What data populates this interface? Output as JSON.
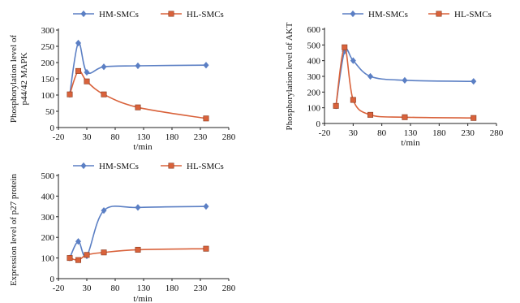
{
  "chart_data": [
    {
      "type": "line",
      "xlabel": "t/min",
      "ylabel": "Phosphorylation level of p44/42 MAPK",
      "ylabel_lines": [
        "Phosphorylation level of",
        "p44/42 MAPK"
      ],
      "xlim": [
        -20,
        280
      ],
      "ylim": [
        0,
        300
      ],
      "xticks": [
        -20,
        30,
        80,
        130,
        180,
        230,
        280
      ],
      "yticks": [
        0,
        50,
        100,
        150,
        200,
        250,
        300
      ],
      "legend": "top",
      "grid": false,
      "series": [
        {
          "name": "HM-SMCs",
          "color": "#5b7fc4",
          "marker": "diamond",
          "x": [
            0,
            15,
            30,
            60,
            120,
            240
          ],
          "y": [
            102,
            260,
            170,
            187,
            190,
            192
          ]
        },
        {
          "name": "HL-SMCs",
          "color": "#d9623b",
          "marker": "square",
          "x": [
            0,
            15,
            30,
            60,
            120,
            240
          ],
          "y": [
            102,
            174,
            142,
            102,
            62,
            28
          ]
        }
      ]
    },
    {
      "type": "line",
      "xlabel": "t/min",
      "ylabel": "Phosphorylation level of AKT",
      "ylabel_lines": [
        "Phosphorylation level of AKT"
      ],
      "xlim": [
        -20,
        280
      ],
      "ylim": [
        0,
        600
      ],
      "xticks": [
        -20,
        30,
        80,
        130,
        180,
        230,
        280
      ],
      "yticks": [
        0,
        100,
        200,
        300,
        400,
        500,
        600
      ],
      "legend": "top",
      "grid": false,
      "series": [
        {
          "name": "HM-SMCs",
          "color": "#5b7fc4",
          "marker": "diamond",
          "x": [
            0,
            15,
            30,
            60,
            120,
            240
          ],
          "y": [
            112,
            460,
            400,
            300,
            275,
            268
          ]
        },
        {
          "name": "HL-SMCs",
          "color": "#d9623b",
          "marker": "square",
          "x": [
            0,
            15,
            30,
            60,
            120,
            240
          ],
          "y": [
            112,
            485,
            150,
            55,
            40,
            35
          ]
        }
      ]
    },
    {
      "type": "line",
      "xlabel": "t/min",
      "ylabel": "Expression level of p27 protein",
      "ylabel_lines": [
        "Expression level of p27 protein"
      ],
      "xlim": [
        -20,
        280
      ],
      "ylim": [
        0,
        500
      ],
      "xticks": [
        -20,
        30,
        80,
        130,
        180,
        230,
        280
      ],
      "yticks": [
        0,
        100,
        200,
        300,
        400,
        500
      ],
      "legend": "top",
      "grid": false,
      "series": [
        {
          "name": "HM-SMCs",
          "color": "#5b7fc4",
          "marker": "diamond",
          "x": [
            0,
            15,
            30,
            60,
            120,
            240
          ],
          "y": [
            100,
            180,
            110,
            330,
            345,
            350
          ]
        },
        {
          "name": "HL-SMCs",
          "color": "#d9623b",
          "marker": "square",
          "x": [
            0,
            15,
            30,
            60,
            120,
            240
          ],
          "y": [
            100,
            90,
            115,
            127,
            140,
            145
          ]
        }
      ]
    }
  ]
}
